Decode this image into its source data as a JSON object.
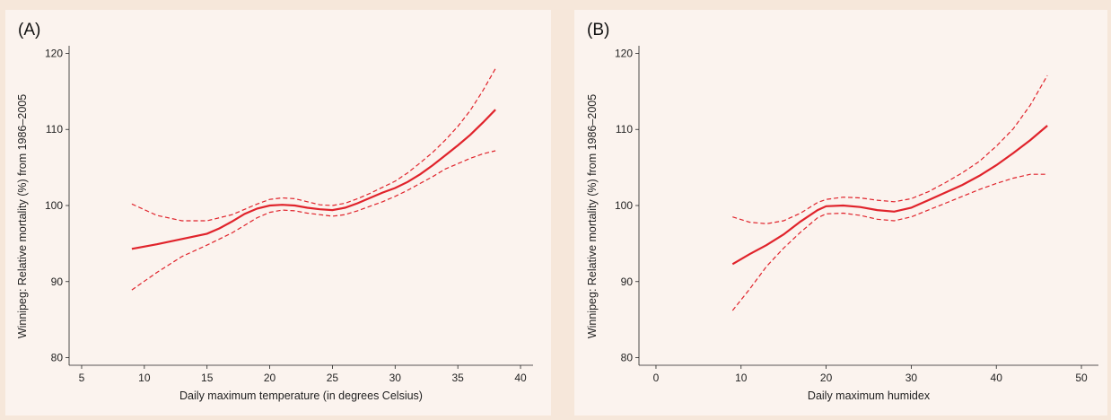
{
  "chart_data": [
    {
      "type": "line",
      "panel_label": "(A)",
      "xlabel": "Daily maximum temperature (in degrees Celsius)",
      "ylabel": "Winnipeg: Relative mortality (%) from 1986–2005",
      "xlim": [
        4,
        41
      ],
      "ylim": [
        79,
        121
      ],
      "xticks": [
        5,
        10,
        15,
        20,
        25,
        30,
        35,
        40
      ],
      "yticks": [
        80,
        90,
        100,
        110,
        120
      ],
      "grid": false,
      "series": [
        {
          "role": "estimate",
          "style": "solid",
          "x": [
            9,
            11,
            13,
            15,
            16,
            17,
            18,
            19,
            20,
            21,
            22,
            23,
            24,
            25,
            26,
            27,
            28,
            29,
            30,
            31,
            32,
            33,
            34,
            35,
            36,
            37,
            38
          ],
          "y": [
            94.3,
            94.9,
            95.6,
            96.3,
            97.0,
            97.9,
            98.9,
            99.6,
            100.0,
            100.1,
            100.0,
            99.7,
            99.5,
            99.4,
            99.7,
            100.3,
            101.0,
            101.7,
            102.3,
            103.1,
            104.1,
            105.3,
            106.6,
            107.9,
            109.3,
            110.9,
            112.6
          ]
        },
        {
          "role": "upper-ci",
          "style": "dashed",
          "x": [
            9,
            11,
            13,
            15,
            17,
            19,
            20,
            21,
            22,
            23,
            24,
            25,
            26,
            27,
            28,
            29,
            30,
            31,
            32,
            33,
            34,
            35,
            36,
            37,
            38
          ],
          "y": [
            100.2,
            98.7,
            98.0,
            98.0,
            98.8,
            100.2,
            100.8,
            101.0,
            100.9,
            100.5,
            100.1,
            100.0,
            100.3,
            100.9,
            101.6,
            102.4,
            103.2,
            104.3,
            105.6,
            107.0,
            108.6,
            110.4,
            112.5,
            115.1,
            118.0
          ]
        },
        {
          "role": "lower-ci",
          "style": "dashed",
          "x": [
            9,
            11,
            13,
            15,
            17,
            19,
            20,
            21,
            22,
            23,
            24,
            25,
            26,
            27,
            28,
            29,
            30,
            31,
            32,
            33,
            34,
            35,
            36,
            37,
            38
          ],
          "y": [
            88.9,
            91.2,
            93.3,
            94.8,
            96.4,
            98.4,
            99.1,
            99.4,
            99.3,
            99.0,
            98.8,
            98.6,
            98.8,
            99.3,
            99.9,
            100.5,
            101.2,
            102.0,
            102.9,
            103.8,
            104.8,
            105.5,
            106.2,
            106.8,
            107.2
          ]
        }
      ]
    },
    {
      "type": "line",
      "panel_label": "(B)",
      "xlabel": "Daily maximum humidex",
      "ylabel": "Winnipeg: Relative mortality (%) from 1986–2005",
      "xlim": [
        -2,
        52
      ],
      "ylim": [
        79,
        121
      ],
      "xticks": [
        0,
        10,
        20,
        30,
        40,
        50
      ],
      "yticks": [
        80,
        90,
        100,
        110,
        120
      ],
      "grid": false,
      "series": [
        {
          "role": "estimate",
          "style": "solid",
          "x": [
            9,
            11,
            13,
            15,
            17,
            19,
            20,
            22,
            24,
            26,
            28,
            30,
            32,
            34,
            36,
            38,
            40,
            42,
            44,
            46
          ],
          "y": [
            92.3,
            93.6,
            94.8,
            96.2,
            97.9,
            99.4,
            99.9,
            100.0,
            99.8,
            99.4,
            99.2,
            99.7,
            100.7,
            101.7,
            102.7,
            103.9,
            105.3,
            106.9,
            108.6,
            110.5
          ]
        },
        {
          "role": "upper-ci",
          "style": "dashed",
          "x": [
            9,
            11,
            13,
            15,
            17,
            19,
            20,
            22,
            24,
            26,
            28,
            30,
            32,
            34,
            36,
            38,
            40,
            42,
            44,
            46
          ],
          "y": [
            98.5,
            97.8,
            97.6,
            98.0,
            99.0,
            100.4,
            100.8,
            101.1,
            101.0,
            100.7,
            100.5,
            100.9,
            101.8,
            103.0,
            104.3,
            105.8,
            107.8,
            110.1,
            113.2,
            117.1
          ]
        },
        {
          "role": "lower-ci",
          "style": "dashed",
          "x": [
            9,
            11,
            13,
            15,
            17,
            19,
            20,
            22,
            24,
            26,
            28,
            30,
            32,
            34,
            36,
            38,
            40,
            42,
            44,
            46
          ],
          "y": [
            86.2,
            89.0,
            92.0,
            94.4,
            96.5,
            98.4,
            98.9,
            99.0,
            98.7,
            98.2,
            98.0,
            98.5,
            99.4,
            100.3,
            101.2,
            102.1,
            102.9,
            103.6,
            104.1,
            104.1
          ]
        }
      ]
    }
  ]
}
